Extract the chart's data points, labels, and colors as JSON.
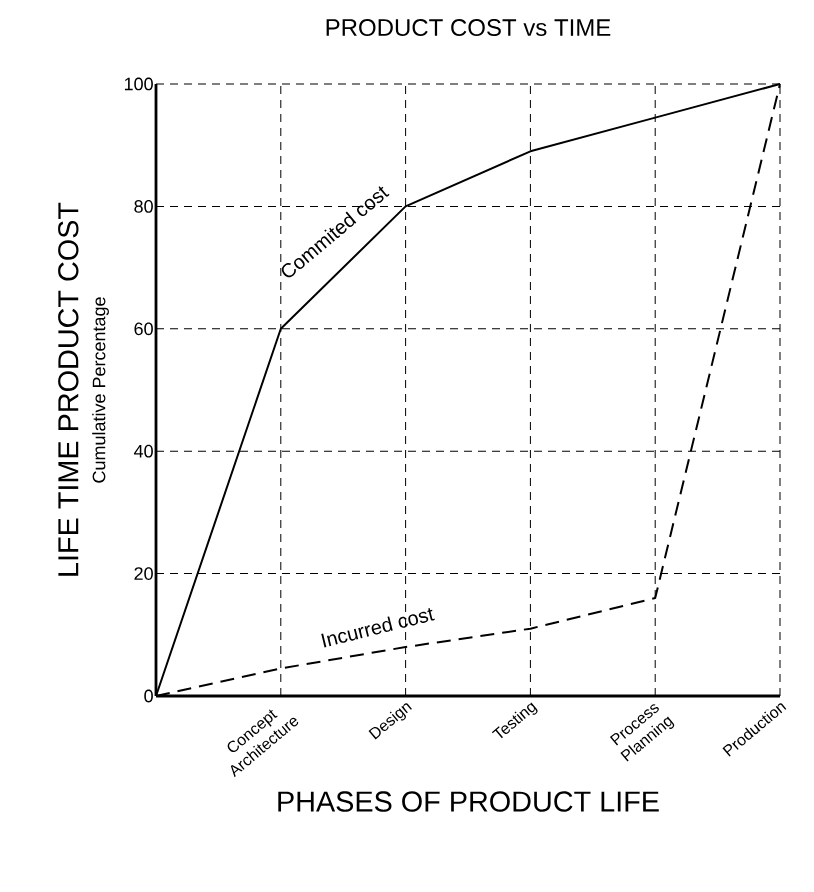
{
  "chart_data": {
    "type": "line",
    "title": "PRODUCT COST vs TIME",
    "xlabel": "PHASES OF PRODUCT LIFE",
    "ylabel": "LIFE TIME PRODUCT COST",
    "annotations": [
      "Cumulative Percentage",
      "Commited cost",
      "Incurred cost"
    ],
    "categories": [
      null,
      "Concept\nArchitecture",
      "Design",
      "Testing",
      "Process\nPlanning",
      "Production"
    ],
    "series": [
      {
        "color": "#000000",
        "line_style": "solid",
        "values": [
          0,
          60,
          80,
          89,
          94.5,
          100
        ]
      },
      {
        "color": "#000000",
        "line_style": "dashed",
        "values": [
          0,
          4.5,
          8,
          11,
          16,
          100
        ]
      }
    ],
    "ylim": [
      0,
      100
    ],
    "yticks": [
      0,
      20,
      40,
      60,
      80,
      100
    ],
    "grid": true,
    "marker": "none"
  }
}
